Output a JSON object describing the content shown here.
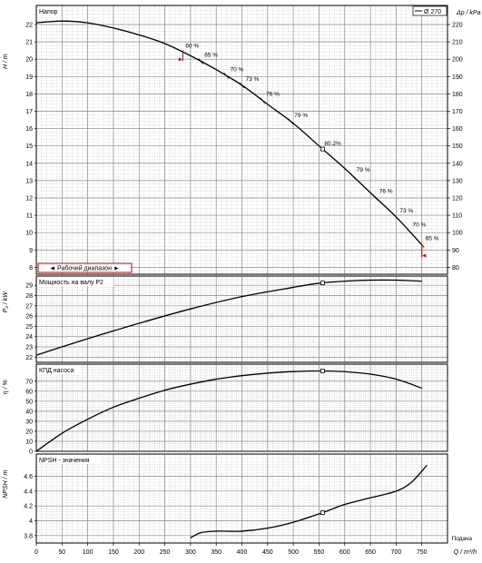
{
  "chart_data": {
    "type": "line",
    "x_axis": {
      "label": "Q / m³/h",
      "label_extra": "Подача",
      "range": [
        0,
        800
      ],
      "ticks": [
        0,
        50,
        100,
        150,
        200,
        250,
        300,
        350,
        400,
        450,
        500,
        550,
        600,
        650,
        700,
        750
      ]
    },
    "panels": [
      {
        "id": "head",
        "title": "Напор",
        "ylabel": "H / m",
        "ylim": [
          7.6,
          23.1
        ],
        "yticks": [
          8,
          9,
          10,
          11,
          12,
          13,
          14,
          15,
          16,
          17,
          18,
          19,
          20,
          21,
          22
        ],
        "y2label": "Δp / kPa",
        "y2ticks": [
          80,
          90,
          100,
          110,
          120,
          130,
          140,
          150,
          160,
          170,
          180,
          190,
          200,
          210,
          220
        ],
        "legend": "Ø 270",
        "range_label": "◄ Рабочий диапазон ►",
        "operating_range": [
          285,
          750
        ],
        "curve": {
          "x": [
            0,
            50,
            100,
            150,
            200,
            250,
            300,
            350,
            400,
            450,
            500,
            550,
            600,
            650,
            700,
            750
          ],
          "y": [
            22.1,
            22.2,
            22.1,
            21.8,
            21.4,
            20.9,
            20.2,
            19.4,
            18.5,
            17.4,
            16.3,
            15.0,
            13.7,
            12.3,
            10.9,
            9.3
          ]
        },
        "efficiency_marks": [
          {
            "x": 320,
            "label": "65 %"
          },
          {
            "x": 370,
            "label": "70 %"
          },
          {
            "x": 400,
            "label": "73 %"
          },
          {
            "x": 440,
            "label": "76 %"
          },
          {
            "x": 495,
            "label": "79 %"
          },
          {
            "x": 616,
            "label": "79 %"
          },
          {
            "x": 660,
            "label": "76 %"
          },
          {
            "x": 700,
            "label": "73 %"
          },
          {
            "x": 725,
            "label": "70 %"
          },
          {
            "x": 750,
            "label": "65 %"
          }
        ],
        "range_marks": [
          {
            "x": 285,
            "label": "60 %"
          }
        ],
        "bep": {
          "x": 557,
          "label": "80.2%"
        }
      },
      {
        "id": "power",
        "title": "Мощность на валу P2",
        "ylabel": "P₂ / kW",
        "ylim": [
          21.5,
          29.9
        ],
        "yticks": [
          22,
          23,
          24,
          25,
          26,
          27,
          28,
          29
        ],
        "curve": {
          "x": [
            0,
            100,
            200,
            300,
            400,
            500,
            550,
            600,
            650,
            700,
            750
          ],
          "y": [
            22.2,
            23.8,
            25.3,
            26.7,
            27.9,
            28.8,
            29.2,
            29.4,
            29.5,
            29.5,
            29.4
          ]
        },
        "bep": {
          "x": 557
        }
      },
      {
        "id": "eff",
        "title": "КПД насоса",
        "ylabel": "η / %",
        "ylim": [
          0,
          87
        ],
        "yticks": [
          0,
          10,
          20,
          30,
          40,
          50,
          60,
          70
        ],
        "curve": {
          "x": [
            0,
            50,
            100,
            150,
            200,
            250,
            300,
            350,
            400,
            450,
            500,
            557,
            600,
            650,
            700,
            750
          ],
          "y": [
            0,
            18,
            32,
            44,
            53,
            61,
            67,
            72,
            75.5,
            78,
            79.6,
            80.2,
            79.5,
            77,
            72,
            63
          ]
        },
        "bep": {
          "x": 557
        }
      },
      {
        "id": "npsh",
        "title": "NPSH - значения",
        "ylabel": "NPSH / m",
        "ylim": [
          3.7,
          4.9
        ],
        "yticks": [
          3.8,
          4,
          4.2,
          4.4,
          4.6
        ],
        "curve": {
          "x": [
            300,
            320,
            350,
            400,
            450,
            500,
            557,
            600,
            650,
            700,
            730,
            760
          ],
          "y": [
            3.77,
            3.84,
            3.86,
            3.86,
            3.9,
            3.98,
            4.11,
            4.22,
            4.31,
            4.4,
            4.52,
            4.75
          ]
        },
        "bep": {
          "x": 557
        }
      }
    ]
  }
}
